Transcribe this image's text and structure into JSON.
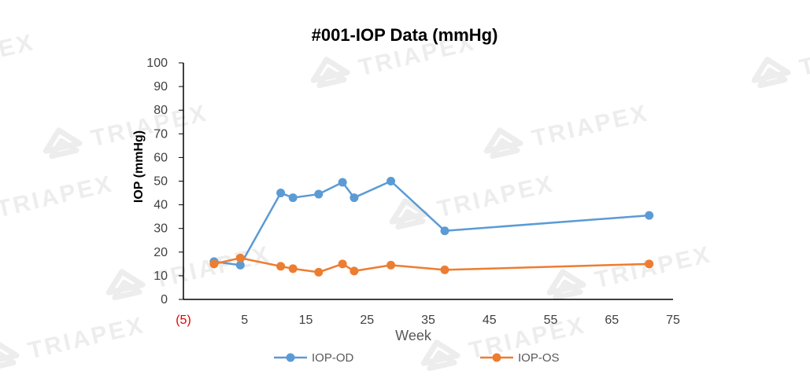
{
  "chart_data": {
    "type": "line",
    "title": "#001-IOP  Data (mmHg)",
    "xlabel": "Week",
    "ylabel": "IOP (mmHg)",
    "xlim": [
      -5,
      75
    ],
    "ylim": [
      0,
      100
    ],
    "x_ticks": [
      {
        "value": -5,
        "label": "(5)",
        "color": "#e00000"
      },
      {
        "value": 5,
        "label": "5"
      },
      {
        "value": 15,
        "label": "15"
      },
      {
        "value": 25,
        "label": "25"
      },
      {
        "value": 35,
        "label": "35"
      },
      {
        "value": 45,
        "label": "45"
      },
      {
        "value": 55,
        "label": "55"
      },
      {
        "value": 65,
        "label": "65"
      },
      {
        "value": 75,
        "label": "75"
      }
    ],
    "y_ticks": [
      0,
      10,
      20,
      30,
      40,
      50,
      60,
      70,
      80,
      90,
      100
    ],
    "grid": false,
    "legend_position": "bottom",
    "series": [
      {
        "name": "IOP-OD",
        "color": "#5b9bd5",
        "points": [
          [
            0,
            16
          ],
          [
            4.3,
            14.5
          ],
          [
            10.9,
            45
          ],
          [
            12.9,
            43
          ],
          [
            17.1,
            44.5
          ],
          [
            21,
            49.5
          ],
          [
            22.9,
            43
          ],
          [
            28.9,
            50
          ],
          [
            37.7,
            29
          ],
          [
            71.1,
            35.5
          ]
        ]
      },
      {
        "name": "IOP-OS",
        "color": "#ed7d31",
        "points": [
          [
            0,
            15
          ],
          [
            4.3,
            17.5
          ],
          [
            10.9,
            14
          ],
          [
            12.9,
            13
          ],
          [
            17.1,
            11.5
          ],
          [
            21,
            15
          ],
          [
            22.9,
            12
          ],
          [
            28.9,
            14.5
          ],
          [
            37.7,
            12.5
          ],
          [
            71.1,
            15
          ]
        ]
      }
    ]
  },
  "watermark": {
    "text": "TRIAPEX",
    "color": "#ededed"
  }
}
